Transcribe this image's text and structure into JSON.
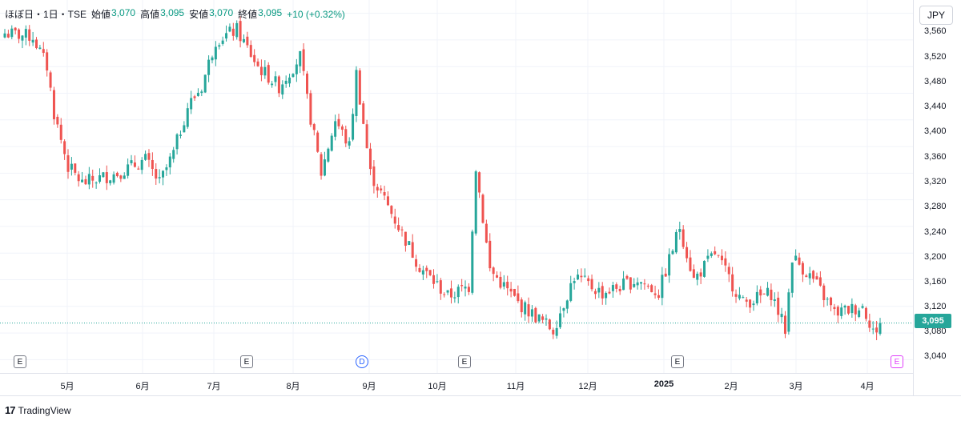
{
  "header": {
    "symbol": "ほぼ日・1日・TSE",
    "open_label": "始値",
    "open_value": "3,070",
    "high_label": "高値",
    "high_value": "3,095",
    "low_label": "安値",
    "low_value": "3,070",
    "close_label": "終値",
    "close_value": "3,095",
    "change": "+10 (+0.32%)"
  },
  "currency": "JPY",
  "brand": "TradingView",
  "colors": {
    "up": "#26a69a",
    "down": "#ef5350",
    "grid": "#f0f3fa",
    "last_price_line": "#26a69a"
  },
  "price_axis": {
    "ticks": [
      "3,560",
      "3,520",
      "3,480",
      "3,440",
      "3,400",
      "3,360",
      "3,320",
      "3,280",
      "3,240",
      "3,200",
      "3,160",
      "3,120",
      "3,080",
      "3,040"
    ]
  },
  "time_axis": {
    "ticks": [
      {
        "label": "5月",
        "bold": false
      },
      {
        "label": "6月",
        "bold": false
      },
      {
        "label": "7月",
        "bold": false
      },
      {
        "label": "8月",
        "bold": false
      },
      {
        "label": "9月",
        "bold": false
      },
      {
        "label": "10月",
        "bold": false
      },
      {
        "label": "11月",
        "bold": false
      },
      {
        "label": "12月",
        "bold": false
      },
      {
        "label": "2025",
        "bold": true
      },
      {
        "label": "2月",
        "bold": false
      },
      {
        "label": "3月",
        "bold": false
      },
      {
        "label": "4月",
        "bold": false
      }
    ]
  },
  "last_price": "3,095",
  "events": [
    {
      "label": "E",
      "kind": "earnings"
    },
    {
      "label": "E",
      "kind": "earnings"
    },
    {
      "label": "D",
      "kind": "dividend"
    },
    {
      "label": "E",
      "kind": "earnings"
    },
    {
      "label": "E",
      "kind": "earnings"
    },
    {
      "label": "E",
      "kind": "future-earnings"
    }
  ],
  "chart_data": {
    "type": "candlestick",
    "ylim": [
      3020,
      3580
    ],
    "bar_count": 250,
    "last_close": 3095,
    "price_path": [
      {
        "bar": 0,
        "price": 3530
      },
      {
        "bar": 8,
        "price": 3525
      },
      {
        "bar": 12,
        "price": 3480
      },
      {
        "bar": 14,
        "price": 3410
      },
      {
        "bar": 18,
        "price": 3330
      },
      {
        "bar": 22,
        "price": 3305
      },
      {
        "bar": 32,
        "price": 3320
      },
      {
        "bar": 40,
        "price": 3340
      },
      {
        "bar": 44,
        "price": 3305
      },
      {
        "bar": 48,
        "price": 3350
      },
      {
        "bar": 52,
        "price": 3420
      },
      {
        "bar": 56,
        "price": 3450
      },
      {
        "bar": 60,
        "price": 3520
      },
      {
        "bar": 66,
        "price": 3535
      },
      {
        "bar": 72,
        "price": 3480
      },
      {
        "bar": 78,
        "price": 3450
      },
      {
        "bar": 84,
        "price": 3495
      },
      {
        "bar": 86,
        "price": 3430
      },
      {
        "bar": 90,
        "price": 3320
      },
      {
        "bar": 94,
        "price": 3400
      },
      {
        "bar": 98,
        "price": 3360
      },
      {
        "bar": 100,
        "price": 3470
      },
      {
        "bar": 104,
        "price": 3320
      },
      {
        "bar": 110,
        "price": 3260
      },
      {
        "bar": 118,
        "price": 3180
      },
      {
        "bar": 126,
        "price": 3135
      },
      {
        "bar": 132,
        "price": 3150
      },
      {
        "bar": 134,
        "price": 3330
      },
      {
        "bar": 138,
        "price": 3175
      },
      {
        "bar": 146,
        "price": 3125
      },
      {
        "bar": 156,
        "price": 3085
      },
      {
        "bar": 162,
        "price": 3165
      },
      {
        "bar": 170,
        "price": 3140
      },
      {
        "bar": 180,
        "price": 3160
      },
      {
        "bar": 186,
        "price": 3140
      },
      {
        "bar": 192,
        "price": 3240
      },
      {
        "bar": 196,
        "price": 3160
      },
      {
        "bar": 202,
        "price": 3200
      },
      {
        "bar": 210,
        "price": 3125
      },
      {
        "bar": 218,
        "price": 3140
      },
      {
        "bar": 222,
        "price": 3085
      },
      {
        "bar": 224,
        "price": 3195
      },
      {
        "bar": 230,
        "price": 3160
      },
      {
        "bar": 236,
        "price": 3110
      },
      {
        "bar": 244,
        "price": 3120
      },
      {
        "bar": 248,
        "price": 3075
      },
      {
        "bar": 249,
        "price": 3095
      }
    ]
  }
}
